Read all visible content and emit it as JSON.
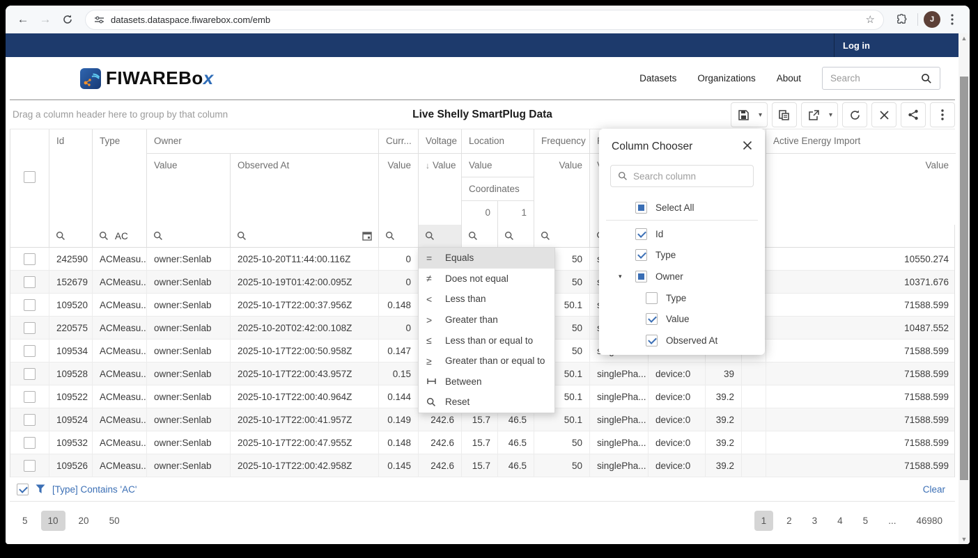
{
  "browser": {
    "url": "datasets.dataspace.fiwarebox.com/emb",
    "profile_initial": "J"
  },
  "navbar": {
    "login_label": "Log in"
  },
  "site_header": {
    "brand_main": "FIWAREBo",
    "brand_x": "x",
    "nav": [
      "Datasets",
      "Organizations",
      "About"
    ],
    "search_placeholder": "Search"
  },
  "toolbar": {
    "group_panel_hint": "Drag a column header here to group by that column",
    "title": "Live Shelly SmartPlug Data"
  },
  "grid": {
    "header": {
      "id": "Id",
      "type": "Type",
      "owner": "Owner",
      "owner_value": "Value",
      "observed_at": "Observed At",
      "current": "Curr...",
      "current_value": "Value",
      "voltage": "Voltage",
      "voltage_sort": "↓",
      "voltage_value": "Value",
      "location": "Location",
      "location_value": "Value",
      "coordinates": "Coordinates",
      "coord_0": "0",
      "coord_1": "1",
      "frequency": "Frequency",
      "frequency_value": "Value",
      "p_fragment": "P",
      "p_value_fragment": "V",
      "active_energy": "Active Energy Import",
      "active_energy_value": "Value"
    },
    "filter_row": {
      "type_value": "AC"
    },
    "rows": [
      {
        "id": "242590",
        "type": "ACMeasu...",
        "owner": "owner:Senlab",
        "observed_at": "2025-10-20T11:44:00.116Z",
        "current": "0",
        "voltage": "",
        "coord0": "",
        "coord1": "",
        "frequency": "50",
        "phase": "singlePha...",
        "device": "",
        "power": "",
        "extra": "",
        "energy": "10550.274"
      },
      {
        "id": "152679",
        "type": "ACMeasu...",
        "owner": "owner:Senlab",
        "observed_at": "2025-10-19T01:42:00.095Z",
        "current": "0",
        "voltage": "",
        "coord0": "",
        "coord1": "",
        "frequency": "50",
        "phase": "singlePha...",
        "device": "",
        "power": "",
        "extra": "",
        "energy": "10371.676"
      },
      {
        "id": "109520",
        "type": "ACMeasu...",
        "owner": "owner:Senlab",
        "observed_at": "2025-10-17T22:00:37.956Z",
        "current": "0.148",
        "voltage": "",
        "coord0": "",
        "coord1": "",
        "frequency": "50.1",
        "phase": "singlePha...",
        "device": "",
        "power": "",
        "extra": "",
        "energy": "71588.599"
      },
      {
        "id": "220575",
        "type": "ACMeasu...",
        "owner": "owner:Senlab",
        "observed_at": "2025-10-20T02:42:00.108Z",
        "current": "0",
        "voltage": "",
        "coord0": "",
        "coord1": "",
        "frequency": "50",
        "phase": "singlePha...",
        "device": "",
        "power": "",
        "extra": "",
        "energy": "10487.552"
      },
      {
        "id": "109534",
        "type": "ACMeasu...",
        "owner": "owner:Senlab",
        "observed_at": "2025-10-17T22:00:50.958Z",
        "current": "0.147",
        "voltage": "",
        "coord0": "",
        "coord1": "",
        "frequency": "50",
        "phase": "singlePha...",
        "device": "",
        "power": "",
        "extra": "",
        "energy": "71588.599"
      },
      {
        "id": "109528",
        "type": "ACMeasu...",
        "owner": "owner:Senlab",
        "observed_at": "2025-10-17T22:00:43.957Z",
        "current": "0.15",
        "voltage": "",
        "coord0": "",
        "coord1": "",
        "frequency": "50.1",
        "phase": "singlePha...",
        "device": "device:0",
        "power": "39",
        "extra": "",
        "energy": "71588.599"
      },
      {
        "id": "109522",
        "type": "ACMeasu...",
        "owner": "owner:Senlab",
        "observed_at": "2025-10-17T22:00:40.964Z",
        "current": "0.144",
        "voltage": "",
        "coord0": "",
        "coord1": "",
        "frequency": "50.1",
        "phase": "singlePha...",
        "device": "device:0",
        "power": "39.2",
        "extra": "",
        "energy": "71588.599"
      },
      {
        "id": "109524",
        "type": "ACMeasu...",
        "owner": "owner:Senlab",
        "observed_at": "2025-10-17T22:00:41.957Z",
        "current": "0.149",
        "voltage": "242.6",
        "coord0": "15.7",
        "coord1": "46.5",
        "frequency": "50.1",
        "phase": "singlePha...",
        "device": "device:0",
        "power": "39.2",
        "extra": "",
        "energy": "71588.599"
      },
      {
        "id": "109532",
        "type": "ACMeasu...",
        "owner": "owner:Senlab",
        "observed_at": "2025-10-17T22:00:47.955Z",
        "current": "0.148",
        "voltage": "242.6",
        "coord0": "15.7",
        "coord1": "46.5",
        "frequency": "50",
        "phase": "singlePha...",
        "device": "device:0",
        "power": "39.2",
        "extra": "",
        "energy": "71588.599"
      },
      {
        "id": "109526",
        "type": "ACMeasu...",
        "owner": "owner:Senlab",
        "observed_at": "2025-10-17T22:00:42.958Z",
        "current": "0.145",
        "voltage": "242.6",
        "coord0": "15.7",
        "coord1": "46.5",
        "frequency": "50",
        "phase": "singlePha...",
        "device": "device:0",
        "power": "39.2",
        "extra": "",
        "energy": "71588.599"
      }
    ]
  },
  "filter_menu": {
    "selected": "Equals",
    "items": [
      {
        "glyph": "=",
        "label": "Equals"
      },
      {
        "glyph": "≠",
        "label": "Does not equal"
      },
      {
        "glyph": "<",
        "label": "Less than"
      },
      {
        "glyph": ">",
        "label": "Greater than"
      },
      {
        "glyph": "≤",
        "label": "Less than or equal to"
      },
      {
        "glyph": "≥",
        "label": "Greater than or equal to"
      },
      {
        "glyph": "between",
        "label": "Between"
      },
      {
        "glyph": "search",
        "label": "Reset"
      }
    ]
  },
  "column_chooser": {
    "title": "Column Chooser",
    "search_placeholder": "Search column",
    "items": [
      {
        "label": "Select All",
        "state": "ind",
        "level": 0,
        "arrow": false
      },
      {
        "label": "Id",
        "state": "checked",
        "level": 0,
        "arrow": false
      },
      {
        "label": "Type",
        "state": "checked",
        "level": 0,
        "arrow": false
      },
      {
        "label": "Owner",
        "state": "ind",
        "level": 0,
        "arrow": true
      },
      {
        "label": "Type",
        "state": "unchecked",
        "level": 1,
        "arrow": false
      },
      {
        "label": "Value",
        "state": "checked",
        "level": 1,
        "arrow": false
      },
      {
        "label": "Observed At",
        "state": "checked",
        "level": 1,
        "arrow": false
      }
    ]
  },
  "filter_panel": {
    "text": "[Type] Contains 'AC'",
    "clear_label": "Clear"
  },
  "pager": {
    "page_sizes": [
      "5",
      "10",
      "20",
      "50"
    ],
    "selected_size": "10",
    "pages": [
      "1",
      "2",
      "3",
      "4",
      "5",
      "...",
      "46980"
    ],
    "selected_page": "1"
  },
  "colors": {
    "navy": "#1d3a6c",
    "accent": "#3b6fb5",
    "alt_row": "#f7f7f7"
  }
}
